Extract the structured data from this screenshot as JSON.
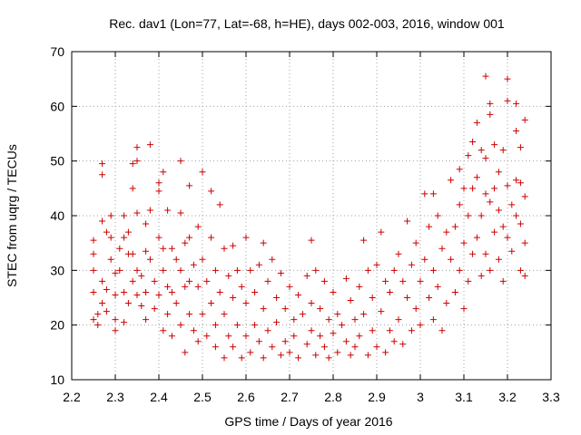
{
  "chart_data": {
    "type": "scatter",
    "title": "Rec. dav1 (Lon=77, Lat=-68, h=HE), days 002-003, 2016, window 001",
    "xlabel": "GPS time / Days of year 2016",
    "ylabel": "STEC from uqrg / TECUs",
    "xlim": [
      2.2,
      3.3
    ],
    "ylim": [
      10,
      70
    ],
    "xticks": [
      2.2,
      2.3,
      2.4,
      2.5,
      2.6,
      2.7,
      2.8,
      2.9,
      3.0,
      3.1,
      3.2,
      3.3
    ],
    "xtick_labels": [
      "2.2",
      "2.3",
      "2.4",
      "2.5",
      "2.6",
      "2.7",
      "2.8",
      "2.9",
      "3",
      "3.1",
      "3.2",
      "3.3"
    ],
    "yticks": [
      10,
      20,
      30,
      40,
      50,
      60,
      70
    ],
    "ytick_labels": [
      "10",
      "20",
      "30",
      "40",
      "50",
      "60",
      "70"
    ],
    "grid": true,
    "legend": "none",
    "marker": "plus",
    "marker_color": "#cc0000",
    "series": [
      {
        "name": "",
        "points": [
          [
            2.25,
            35.5
          ],
          [
            2.25,
            33.0
          ],
          [
            2.25,
            30.0
          ],
          [
            2.25,
            26.0
          ],
          [
            2.26,
            22.0
          ],
          [
            2.25,
            21.0
          ],
          [
            2.26,
            20.0
          ],
          [
            2.27,
            49.5
          ],
          [
            2.27,
            47.5
          ],
          [
            2.27,
            39.0
          ],
          [
            2.28,
            37.0
          ],
          [
            2.27,
            28.0
          ],
          [
            2.28,
            26.5
          ],
          [
            2.27,
            24.0
          ],
          [
            2.28,
            22.5
          ],
          [
            2.29,
            40.0
          ],
          [
            2.29,
            36.0
          ],
          [
            2.29,
            32.0
          ],
          [
            2.3,
            29.5
          ],
          [
            2.3,
            25.5
          ],
          [
            2.3,
            21.0
          ],
          [
            2.3,
            19.0
          ],
          [
            2.31,
            34.0
          ],
          [
            2.31,
            30.0
          ],
          [
            2.32,
            40.0
          ],
          [
            2.32,
            36.0
          ],
          [
            2.32,
            26.0
          ],
          [
            2.32,
            20.5
          ],
          [
            2.33,
            37.0
          ],
          [
            2.33,
            33.0
          ],
          [
            2.33,
            24.0
          ],
          [
            2.34,
            49.5
          ],
          [
            2.34,
            45.0
          ],
          [
            2.34,
            33.0
          ],
          [
            2.34,
            28.0
          ],
          [
            2.35,
            52.5
          ],
          [
            2.35,
            50.0
          ],
          [
            2.35,
            40.5
          ],
          [
            2.35,
            30.0
          ],
          [
            2.35,
            25.5
          ],
          [
            2.36,
            29.0
          ],
          [
            2.36,
            23.5
          ],
          [
            2.37,
            38.5
          ],
          [
            2.37,
            33.5
          ],
          [
            2.37,
            26.0
          ],
          [
            2.37,
            21.0
          ],
          [
            2.38,
            53.0
          ],
          [
            2.38,
            41.0
          ],
          [
            2.38,
            32.0
          ],
          [
            2.39,
            28.0
          ],
          [
            2.39,
            23.0
          ],
          [
            2.4,
            46.0
          ],
          [
            2.4,
            44.5
          ],
          [
            2.4,
            36.0
          ],
          [
            2.4,
            25.5
          ],
          [
            2.41,
            48.0
          ],
          [
            2.41,
            34.0
          ],
          [
            2.41,
            30.0
          ],
          [
            2.41,
            19.0
          ],
          [
            2.42,
            41.0
          ],
          [
            2.42,
            27.0
          ],
          [
            2.42,
            22.0
          ],
          [
            2.43,
            34.0
          ],
          [
            2.43,
            26.0
          ],
          [
            2.43,
            18.0
          ],
          [
            2.44,
            32.0
          ],
          [
            2.44,
            24.0
          ],
          [
            2.45,
            50.0
          ],
          [
            2.45,
            40.5
          ],
          [
            2.45,
            30.0
          ],
          [
            2.45,
            20.0
          ],
          [
            2.46,
            35.0
          ],
          [
            2.46,
            27.0
          ],
          [
            2.46,
            15.0
          ],
          [
            2.47,
            45.5
          ],
          [
            2.47,
            36.0
          ],
          [
            2.47,
            28.0
          ],
          [
            2.47,
            22.0
          ],
          [
            2.48,
            31.0
          ],
          [
            2.48,
            19.0
          ],
          [
            2.49,
            38.0
          ],
          [
            2.49,
            27.0
          ],
          [
            2.49,
            17.0
          ],
          [
            2.5,
            48.0
          ],
          [
            2.5,
            32.0
          ],
          [
            2.5,
            22.0
          ],
          [
            2.51,
            28.0
          ],
          [
            2.51,
            18.0
          ],
          [
            2.52,
            44.5
          ],
          [
            2.52,
            36.0
          ],
          [
            2.52,
            24.0
          ],
          [
            2.53,
            30.0
          ],
          [
            2.53,
            20.0
          ],
          [
            2.53,
            16.0
          ],
          [
            2.54,
            42.0
          ],
          [
            2.54,
            26.0
          ],
          [
            2.55,
            34.0
          ],
          [
            2.55,
            22.0
          ],
          [
            2.55,
            14.0
          ],
          [
            2.56,
            29.0
          ],
          [
            2.56,
            18.0
          ],
          [
            2.57,
            34.5
          ],
          [
            2.57,
            25.0
          ],
          [
            2.57,
            16.0
          ],
          [
            2.58,
            30.0
          ],
          [
            2.58,
            20.0
          ],
          [
            2.59,
            27.0
          ],
          [
            2.59,
            14.0
          ],
          [
            2.6,
            36.0
          ],
          [
            2.6,
            24.0
          ],
          [
            2.6,
            18.0
          ],
          [
            2.61,
            30.0
          ],
          [
            2.61,
            15.0
          ],
          [
            2.62,
            26.0
          ],
          [
            2.62,
            20.0
          ],
          [
            2.63,
            31.0
          ],
          [
            2.63,
            17.0
          ],
          [
            2.64,
            35.0
          ],
          [
            2.64,
            23.0
          ],
          [
            2.64,
            14.0
          ],
          [
            2.65,
            28.0
          ],
          [
            2.65,
            19.0
          ],
          [
            2.66,
            32.0
          ],
          [
            2.66,
            16.0
          ],
          [
            2.67,
            25.0
          ],
          [
            2.67,
            20.5
          ],
          [
            2.68,
            29.5
          ],
          [
            2.68,
            14.5
          ],
          [
            2.69,
            23.0
          ],
          [
            2.69,
            17.0
          ],
          [
            2.7,
            27.0
          ],
          [
            2.7,
            15.0
          ],
          [
            2.71,
            21.0
          ],
          [
            2.71,
            18.0
          ],
          [
            2.72,
            25.5
          ],
          [
            2.72,
            14.0
          ],
          [
            2.73,
            22.0
          ],
          [
            2.74,
            29.0
          ],
          [
            2.74,
            16.5
          ],
          [
            2.75,
            35.5
          ],
          [
            2.75,
            24.0
          ],
          [
            2.75,
            19.0
          ],
          [
            2.76,
            30.0
          ],
          [
            2.76,
            14.5
          ],
          [
            2.77,
            23.0
          ],
          [
            2.77,
            18.0
          ],
          [
            2.78,
            28.0
          ],
          [
            2.78,
            16.0
          ],
          [
            2.79,
            21.0
          ],
          [
            2.79,
            14.0
          ],
          [
            2.8,
            26.0
          ],
          [
            2.8,
            18.5
          ],
          [
            2.81,
            22.0
          ],
          [
            2.81,
            15.0
          ],
          [
            2.82,
            20.0
          ],
          [
            2.83,
            28.5
          ],
          [
            2.83,
            17.0
          ],
          [
            2.84,
            24.5
          ],
          [
            2.84,
            14.5
          ],
          [
            2.85,
            21.0
          ],
          [
            2.85,
            16.0
          ],
          [
            2.86,
            27.0
          ],
          [
            2.86,
            18.0
          ],
          [
            2.87,
            35.5
          ],
          [
            2.87,
            22.0
          ],
          [
            2.88,
            30.0
          ],
          [
            2.88,
            14.5
          ],
          [
            2.89,
            25.0
          ],
          [
            2.89,
            19.0
          ],
          [
            2.9,
            31.0
          ],
          [
            2.9,
            16.0
          ],
          [
            2.91,
            37.0
          ],
          [
            2.91,
            22.5
          ],
          [
            2.92,
            28.0
          ],
          [
            2.92,
            15.0
          ],
          [
            2.93,
            26.0
          ],
          [
            2.93,
            19.0
          ],
          [
            2.94,
            30.0
          ],
          [
            2.94,
            17.0
          ],
          [
            2.95,
            33.0
          ],
          [
            2.95,
            21.0
          ],
          [
            2.96,
            28.0
          ],
          [
            2.96,
            16.5
          ],
          [
            2.97,
            39.0
          ],
          [
            2.97,
            25.0
          ],
          [
            2.98,
            31.0
          ],
          [
            2.98,
            19.0
          ],
          [
            2.99,
            35.0
          ],
          [
            2.99,
            23.0
          ],
          [
            3.0,
            28.0
          ],
          [
            3.0,
            20.0
          ],
          [
            3.01,
            44.0
          ],
          [
            3.01,
            32.0
          ],
          [
            3.02,
            38.0
          ],
          [
            3.02,
            25.0
          ],
          [
            3.03,
            44.0
          ],
          [
            3.03,
            30.0
          ],
          [
            3.03,
            21.0
          ],
          [
            3.04,
            40.0
          ],
          [
            3.04,
            27.0
          ],
          [
            3.05,
            34.0
          ],
          [
            3.05,
            19.0
          ],
          [
            3.06,
            37.0
          ],
          [
            3.06,
            24.0
          ],
          [
            3.07,
            46.5
          ],
          [
            3.07,
            32.0
          ],
          [
            3.08,
            38.0
          ],
          [
            3.08,
            26.0
          ],
          [
            3.09,
            48.5
          ],
          [
            3.09,
            42.0
          ],
          [
            3.09,
            30.0
          ],
          [
            3.1,
            45.0
          ],
          [
            3.1,
            35.0
          ],
          [
            3.1,
            23.0
          ],
          [
            3.11,
            51.0
          ],
          [
            3.11,
            40.0
          ],
          [
            3.11,
            28.0
          ],
          [
            3.12,
            53.5
          ],
          [
            3.12,
            45.0
          ],
          [
            3.12,
            33.0
          ],
          [
            3.13,
            57.0
          ],
          [
            3.13,
            47.0
          ],
          [
            3.13,
            36.0
          ],
          [
            3.14,
            52.0
          ],
          [
            3.14,
            40.0
          ],
          [
            3.14,
            29.0
          ],
          [
            3.15,
            65.5
          ],
          [
            3.15,
            50.5
          ],
          [
            3.15,
            44.0
          ],
          [
            3.15,
            33.0
          ],
          [
            3.16,
            60.5
          ],
          [
            3.16,
            58.5
          ],
          [
            3.16,
            42.5
          ],
          [
            3.16,
            30.0
          ],
          [
            3.17,
            53.0
          ],
          [
            3.17,
            45.0
          ],
          [
            3.17,
            37.0
          ],
          [
            3.18,
            48.0
          ],
          [
            3.18,
            41.0
          ],
          [
            3.18,
            32.0
          ],
          [
            3.19,
            52.0
          ],
          [
            3.19,
            38.0
          ],
          [
            3.19,
            28.0
          ],
          [
            3.2,
            65.0
          ],
          [
            3.2,
            61.0
          ],
          [
            3.2,
            45.5
          ],
          [
            3.2,
            36.0
          ],
          [
            3.21,
            42.0
          ],
          [
            3.21,
            33.5
          ],
          [
            3.22,
            60.5
          ],
          [
            3.22,
            55.5
          ],
          [
            3.22,
            46.5
          ],
          [
            3.22,
            40.0
          ],
          [
            3.23,
            52.5
          ],
          [
            3.23,
            46.0
          ],
          [
            3.23,
            38.5
          ],
          [
            3.23,
            30.0
          ],
          [
            3.24,
            57.5
          ],
          [
            3.24,
            43.5
          ],
          [
            3.24,
            35.0
          ],
          [
            3.24,
            29.0
          ]
        ]
      }
    ]
  }
}
